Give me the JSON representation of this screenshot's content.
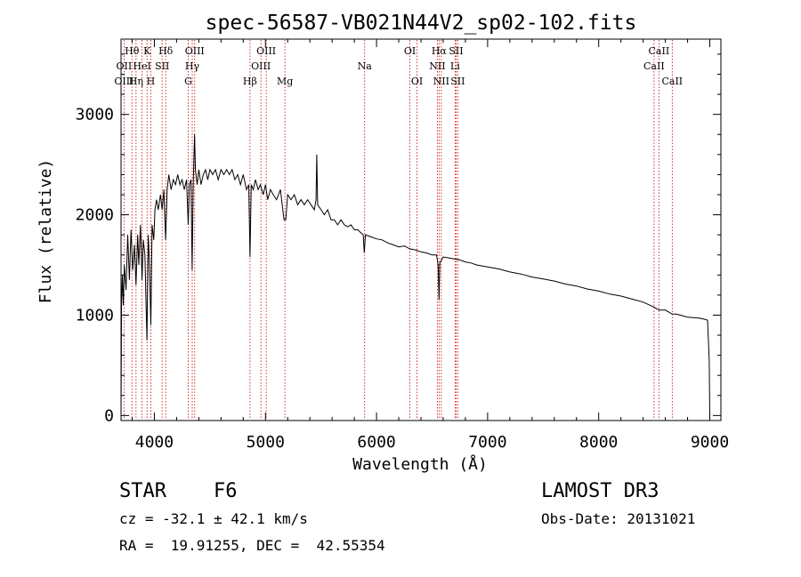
{
  "chart_data": {
    "type": "line",
    "title": "spec-56587-VB021N44V2_sp02-102.fits",
    "xlabel": "Wavelength (Å)",
    "ylabel": "Flux (relative)",
    "xlim": [
      3700,
      9100
    ],
    "ylim": [
      -50,
      3750
    ],
    "x_ticks": [
      4000,
      5000,
      6000,
      7000,
      8000,
      9000
    ],
    "y_ticks": [
      0,
      1000,
      2000,
      3000
    ],
    "x_tick_labels": [
      "4000",
      "5000",
      "6000",
      "7000",
      "8000",
      "9000"
    ],
    "y_tick_labels": [
      "0",
      "1000",
      "2000",
      "3000"
    ],
    "series": [
      {
        "name": "flux",
        "points": [
          [
            3700,
            0
          ],
          [
            3705,
            1150
          ],
          [
            3712,
            1400
          ],
          [
            3720,
            1100
          ],
          [
            3730,
            1500
          ],
          [
            3745,
            1250
          ],
          [
            3760,
            1800
          ],
          [
            3775,
            1350
          ],
          [
            3790,
            1850
          ],
          [
            3805,
            1450
          ],
          [
            3820,
            1700
          ],
          [
            3835,
            1300
          ],
          [
            3850,
            1800
          ],
          [
            3860,
            1500
          ],
          [
            3875,
            1900
          ],
          [
            3889,
            1350
          ],
          [
            3900,
            1750
          ],
          [
            3915,
            1600
          ],
          [
            3933,
            750
          ],
          [
            3945,
            1800
          ],
          [
            3955,
            1550
          ],
          [
            3968,
            900
          ],
          [
            3980,
            1900
          ],
          [
            3995,
            1750
          ],
          [
            4005,
            2050
          ],
          [
            4020,
            2150
          ],
          [
            4035,
            2050
          ],
          [
            4055,
            2200
          ],
          [
            4070,
            2050
          ],
          [
            4085,
            2250
          ],
          [
            4101,
            1750
          ],
          [
            4115,
            2250
          ],
          [
            4130,
            2400
          ],
          [
            4150,
            2250
          ],
          [
            4170,
            2350
          ],
          [
            4190,
            2300
          ],
          [
            4210,
            2400
          ],
          [
            4230,
            2300
          ],
          [
            4250,
            2350
          ],
          [
            4270,
            2250
          ],
          [
            4290,
            2350
          ],
          [
            4305,
            1900
          ],
          [
            4315,
            2300
          ],
          [
            4330,
            2350
          ],
          [
            4340,
            1450
          ],
          [
            4350,
            2300
          ],
          [
            4362,
            2800
          ],
          [
            4370,
            2450
          ],
          [
            4385,
            2300
          ],
          [
            4400,
            2450
          ],
          [
            4420,
            2300
          ],
          [
            4440,
            2400
          ],
          [
            4460,
            2450
          ],
          [
            4480,
            2350
          ],
          [
            4500,
            2450
          ],
          [
            4525,
            2400
          ],
          [
            4550,
            2450
          ],
          [
            4575,
            2350
          ],
          [
            4600,
            2450
          ],
          [
            4625,
            2400
          ],
          [
            4650,
            2450
          ],
          [
            4675,
            2400
          ],
          [
            4700,
            2450
          ],
          [
            4725,
            2350
          ],
          [
            4750,
            2400
          ],
          [
            4775,
            2300
          ],
          [
            4800,
            2400
          ],
          [
            4830,
            2250
          ],
          [
            4850,
            2300
          ],
          [
            4861,
            1580
          ],
          [
            4872,
            2300
          ],
          [
            4890,
            2250
          ],
          [
            4910,
            2350
          ],
          [
            4935,
            2250
          ],
          [
            4955,
            2300
          ],
          [
            4980,
            2200
          ],
          [
            5000,
            2300
          ],
          [
            5020,
            2150
          ],
          [
            5045,
            2250
          ],
          [
            5070,
            2200
          ],
          [
            5100,
            2150
          ],
          [
            5135,
            2250
          ],
          [
            5167,
            1950
          ],
          [
            5183,
            1950
          ],
          [
            5200,
            2200
          ],
          [
            5230,
            2150
          ],
          [
            5260,
            2200
          ],
          [
            5290,
            2100
          ],
          [
            5320,
            2150
          ],
          [
            5350,
            2100
          ],
          [
            5380,
            2150
          ],
          [
            5410,
            2100
          ],
          [
            5440,
            2050
          ],
          [
            5455,
            2150
          ],
          [
            5462,
            2600
          ],
          [
            5470,
            2100
          ],
          [
            5500,
            2050
          ],
          [
            5530,
            2000
          ],
          [
            5560,
            2050
          ],
          [
            5590,
            1950
          ],
          [
            5620,
            1950
          ],
          [
            5650,
            1900
          ],
          [
            5680,
            1950
          ],
          [
            5710,
            1900
          ],
          [
            5740,
            1880
          ],
          [
            5770,
            1900
          ],
          [
            5800,
            1850
          ],
          [
            5830,
            1850
          ],
          [
            5860,
            1820
          ],
          [
            5880,
            1800
          ],
          [
            5890,
            1620
          ],
          [
            5900,
            1800
          ],
          [
            5950,
            1780
          ],
          [
            6000,
            1760
          ],
          [
            6050,
            1750
          ],
          [
            6100,
            1720
          ],
          [
            6150,
            1700
          ],
          [
            6200,
            1680
          ],
          [
            6250,
            1690
          ],
          [
            6300,
            1660
          ],
          [
            6350,
            1650
          ],
          [
            6400,
            1630
          ],
          [
            6450,
            1620
          ],
          [
            6500,
            1600
          ],
          [
            6540,
            1600
          ],
          [
            6555,
            1500
          ],
          [
            6563,
            1150
          ],
          [
            6570,
            1520
          ],
          [
            6600,
            1580
          ],
          [
            6650,
            1570
          ],
          [
            6700,
            1560
          ],
          [
            6750,
            1550
          ],
          [
            6800,
            1530
          ],
          [
            6850,
            1520
          ],
          [
            6900,
            1500
          ],
          [
            6950,
            1490
          ],
          [
            7000,
            1480
          ],
          [
            7100,
            1460
          ],
          [
            7200,
            1430
          ],
          [
            7300,
            1410
          ],
          [
            7400,
            1380
          ],
          [
            7500,
            1360
          ],
          [
            7600,
            1340
          ],
          [
            7700,
            1310
          ],
          [
            7800,
            1290
          ],
          [
            7900,
            1260
          ],
          [
            8000,
            1240
          ],
          [
            8100,
            1210
          ],
          [
            8200,
            1190
          ],
          [
            8300,
            1160
          ],
          [
            8400,
            1130
          ],
          [
            8498,
            1080
          ],
          [
            8542,
            1050
          ],
          [
            8600,
            1050
          ],
          [
            8662,
            1010
          ],
          [
            8700,
            1010
          ],
          [
            8800,
            980
          ],
          [
            8900,
            970
          ],
          [
            8950,
            960
          ],
          [
            8980,
            950
          ],
          [
            8995,
            550
          ],
          [
            9000,
            0
          ]
        ]
      }
    ],
    "line_markers": [
      {
        "label": "Hθ",
        "wl": 3798,
        "row": 0
      },
      {
        "label": "OII",
        "wl": 3727,
        "row": 1
      },
      {
        "label": "OIII",
        "wl": 3727,
        "row": 2
      },
      {
        "label": "Hη",
        "wl": 3835,
        "row": 2
      },
      {
        "label": "HeI",
        "wl": 3889,
        "row": 1
      },
      {
        "label": "K",
        "wl": 3934,
        "row": 0
      },
      {
        "label": "H",
        "wl": 3968,
        "row": 2
      },
      {
        "label": "SII",
        "wl": 4070,
        "row": 1
      },
      {
        "label": "Hδ",
        "wl": 4102,
        "row": 0
      },
      {
        "label": "OIII",
        "wl": 4363,
        "row": 0
      },
      {
        "label": "Hγ",
        "wl": 4341,
        "row": 1
      },
      {
        "label": "G",
        "wl": 4305,
        "row": 2
      },
      {
        "label": "Hβ",
        "wl": 4861,
        "row": 2
      },
      {
        "label": "OIII",
        "wl": 5007,
        "row": 0
      },
      {
        "label": "OIII",
        "wl": 4959,
        "row": 1
      },
      {
        "label": "Mg",
        "wl": 5175,
        "row": 2
      },
      {
        "label": "Na",
        "wl": 5893,
        "row": 1
      },
      {
        "label": "OI",
        "wl": 6300,
        "row": 0
      },
      {
        "label": "OI",
        "wl": 6364,
        "row": 2
      },
      {
        "label": "Hα",
        "wl": 6563,
        "row": 0
      },
      {
        "label": "SII",
        "wl": 6716,
        "row": 0
      },
      {
        "label": "NII",
        "wl": 6548,
        "row": 1
      },
      {
        "label": "Li",
        "wl": 6707,
        "row": 1
      },
      {
        "label": "NII",
        "wl": 6583,
        "row": 2
      },
      {
        "label": "SII",
        "wl": 6731,
        "row": 2
      },
      {
        "label": "CaII",
        "wl": 8542,
        "row": 0
      },
      {
        "label": "CaII",
        "wl": 8498,
        "row": 1
      },
      {
        "label": "CaII",
        "wl": 8662,
        "row": 2
      }
    ],
    "marker_color": "#cc0000"
  },
  "info": {
    "object_class": "STAR",
    "subclass": "F6",
    "survey": "LAMOST DR3",
    "cz_line": "cz = -32.1 ± 42.1 km/s",
    "obs_date_line": "Obs-Date: 20131021",
    "radec_line": "RA =  19.91255, DEC =  42.55354"
  }
}
